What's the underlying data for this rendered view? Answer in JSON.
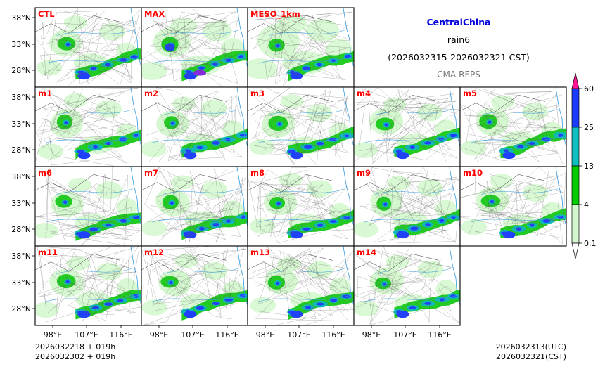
{
  "title": {
    "region": "CentralChina",
    "variable": "rain6",
    "period": "(2026032315-2026032321 CST)",
    "system": "CMA-REPS"
  },
  "panels": [
    {
      "label": "CTL"
    },
    {
      "label": "MAX"
    },
    {
      "label": "MESO_1km"
    },
    {
      "label": "m1"
    },
    {
      "label": "m2"
    },
    {
      "label": "m3"
    },
    {
      "label": "m4"
    },
    {
      "label": "m5"
    },
    {
      "label": "m6"
    },
    {
      "label": "m7"
    },
    {
      "label": "m8"
    },
    {
      "label": "m9"
    },
    {
      "label": "m10"
    },
    {
      "label": "m11"
    },
    {
      "label": "m12"
    },
    {
      "label": "m13"
    },
    {
      "label": "m14"
    }
  ],
  "axes": {
    "lat_ticks": [
      "38°N",
      "33°N",
      "28°N"
    ],
    "lon_ticks": [
      "98°E",
      "107°E",
      "116°E"
    ]
  },
  "colorbar": {
    "levels": [
      "0.1",
      "4",
      "13",
      "25",
      "60"
    ],
    "colors": [
      "#d5f7cf",
      "#00cc00",
      "#10c0c0",
      "#1b3bff",
      "#ff1493"
    ]
  },
  "footer": {
    "init_line1": "2026032218  +  019h",
    "init_line2": "2026032302  +  019h",
    "valid_utc": "2026032313(UTC)",
    "valid_cst": "2026032321(CST)"
  },
  "colors": {
    "light_rain": "#d5f7cf",
    "rain": "#22cc22",
    "heavy": "#10b8b8",
    "very_heavy": "#2040ff",
    "extreme": "#8a2be2",
    "border": "#000000",
    "river": "#3399dd"
  }
}
